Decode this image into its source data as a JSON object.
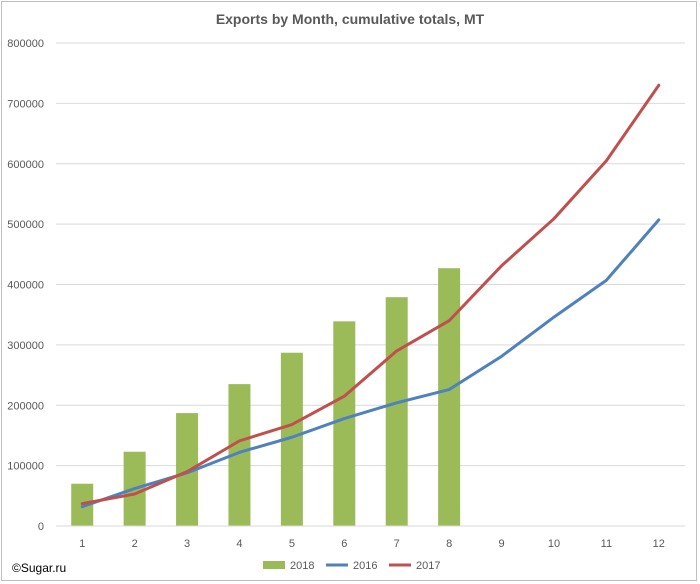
{
  "chart_data": {
    "type": "bar+line",
    "title": "Exports by Month, cumulative totals, MT",
    "xlabel": "",
    "ylabel": "",
    "categories": [
      "1",
      "2",
      "3",
      "4",
      "5",
      "6",
      "7",
      "8",
      "9",
      "10",
      "11",
      "12"
    ],
    "ylim": [
      0,
      800000
    ],
    "yticks": [
      0,
      100000,
      200000,
      300000,
      400000,
      500000,
      600000,
      700000,
      800000
    ],
    "ytick_labels": [
      "0",
      "100000",
      "200000",
      "300000",
      "400000",
      "500000",
      "600000",
      "700000",
      "800000"
    ],
    "grid": true,
    "legend_position": "bottom",
    "series": [
      {
        "name": "2018",
        "type": "bar",
        "color": "#9bbb59",
        "values": [
          70000,
          123000,
          187000,
          235000,
          287000,
          339000,
          379000,
          427000,
          null,
          null,
          null,
          null
        ]
      },
      {
        "name": "2016",
        "type": "line",
        "color": "#4f81bd",
        "values": [
          32000,
          62000,
          88000,
          122000,
          147000,
          178000,
          204000,
          226000,
          281000,
          346000,
          407000,
          507000
        ]
      },
      {
        "name": "2017",
        "type": "line",
        "color": "#c0504d",
        "values": [
          37000,
          53000,
          90000,
          141000,
          168000,
          215000,
          290000,
          340000,
          431000,
          509000,
          605000,
          730000
        ]
      }
    ]
  },
  "credit": "©Sugar.ru"
}
